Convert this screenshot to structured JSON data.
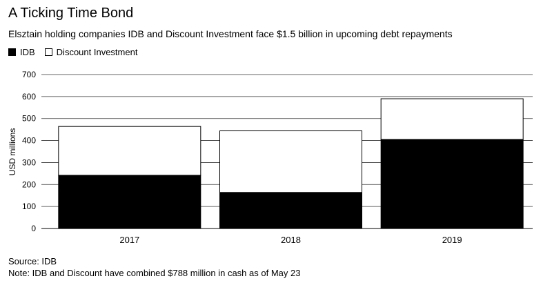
{
  "title": "A Ticking Time Bond",
  "subtitle": "Elsztain holding companies IDB and Discount Investment face $1.5 billion in upcoming debt repayments",
  "source": "Source: IDB",
  "note": "Note: IDB and Discount have combined $788 million in cash as of May 23",
  "colors": {
    "idb": "#000000",
    "discount": "#ffffff",
    "grid": "#333333"
  },
  "chart_data": {
    "type": "bar",
    "stacked": true,
    "categories": [
      "2017",
      "2018",
      "2019"
    ],
    "series": [
      {
        "name": "IDB",
        "values": [
          242,
          164,
          405
        ]
      },
      {
        "name": "Discount Investment",
        "values": [
          222,
          280,
          185
        ]
      }
    ],
    "xlabel": "",
    "ylabel": "USD millions",
    "ylim": [
      0,
      700
    ],
    "yticks": [
      0,
      100,
      200,
      300,
      400,
      500,
      600,
      700
    ],
    "grid": true,
    "legend": "top-left"
  }
}
